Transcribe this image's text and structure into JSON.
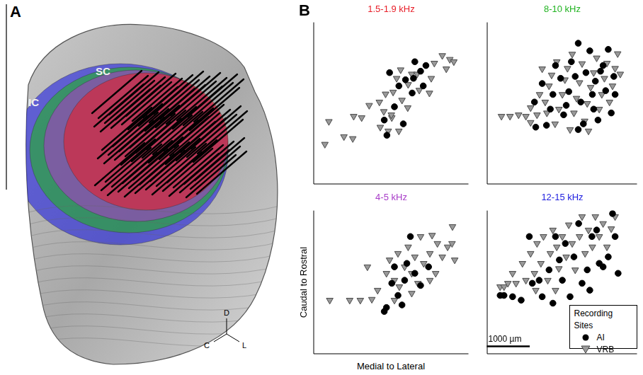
{
  "panel_a": {
    "letter": "A",
    "labels": [
      "SC",
      "IC"
    ],
    "orientation": {
      "up": "D",
      "left": "C",
      "right": "L"
    }
  },
  "panel_b": {
    "letter": "B",
    "xlabel": "Medial to Lateral",
    "ylabel": "Caudal to Rostral",
    "legend": "bottom right",
    "legend_title": "Recording Sites",
    "scale_bar": {
      "label": "1000 µm",
      "length": 1000
    }
  },
  "chart_data": [
    {
      "type": "scatter",
      "title": "1.5-1.9 kHz",
      "color": "#e8202a",
      "xlim": [
        0,
        3500
      ],
      "ylim": [
        0,
        3400
      ],
      "tick_labels": false,
      "grid": false,
      "series": [
        {
          "name": "AI",
          "color": "#000000",
          "marker": "circle",
          "x": [
            1720,
            1830,
            2030,
            2080,
            2230,
            2290,
            2420,
            2480,
            1660,
            1600,
            2540,
            2260,
            1930
          ],
          "values": [
            2340,
            1620,
            1260,
            2190,
            1910,
            2570,
            2370,
            2060,
            1020,
            1340,
            2490,
            2220,
            2060
          ]
        },
        {
          "name": "VRB",
          "color": "#999999",
          "marker": "triangle_down",
          "x": [
            260,
            350,
            690,
            890,
            910,
            1090,
            1260,
            1490,
            1510,
            1590,
            1630,
            1690,
            1770,
            1800,
            1880,
            1970,
            2000,
            2130,
            2140,
            2220,
            2340,
            2390,
            2620,
            2660,
            2730,
            2910,
            3000,
            3080,
            3170,
            1760,
            1930
          ],
          "values": [
            830,
            1310,
            990,
            950,
            1420,
            1390,
            1650,
            1720,
            1190,
            1520,
            1890,
            1110,
            1390,
            1930,
            2220,
            2400,
            1760,
            1600,
            2090,
            2310,
            2310,
            1970,
            1910,
            2220,
            2540,
            2700,
            2420,
            2620,
            2570,
            1450,
            1110
          ]
        }
      ]
    },
    {
      "type": "scatter",
      "title": "8-10 kHz",
      "color": "#22b422",
      "xlim": [
        0,
        3500
      ],
      "ylim": [
        0,
        3400
      ],
      "tick_labels": false,
      "grid": false,
      "series": [
        {
          "name": "AI",
          "color": "#000000",
          "marker": "circle",
          "x": [
            1110,
            1290,
            1390,
            1540,
            1600,
            1720,
            1790,
            1910,
            1970,
            2060,
            2190,
            2250,
            2310,
            2400,
            2460,
            2530,
            2590,
            2710,
            2770,
            2830,
            2960,
            2900,
            1140,
            1480,
            1850,
            2130,
            2490,
            2650,
            2990,
            2130
          ],
          "values": [
            1720,
            2110,
            1230,
            1880,
            2490,
            2220,
            1450,
            1940,
            2570,
            2260,
            1720,
            1260,
            2340,
            2800,
            1880,
            2160,
            1340,
            2490,
            1960,
            2830,
            2260,
            1490,
            1190,
            1570,
            1650,
            1140,
            1570,
            2370,
            1880,
            2960
          ]
        },
        {
          "name": "VRB",
          "color": "#999999",
          "marker": "triangle_down",
          "x": [
            340,
            540,
            740,
            910,
            1020,
            1020,
            1170,
            1230,
            1360,
            1400,
            1450,
            1510,
            1590,
            1680,
            1760,
            1820,
            1880,
            1940,
            2030,
            2090,
            2160,
            2220,
            2280,
            2340,
            2420,
            2490,
            2560,
            2620,
            2680,
            2740,
            2800,
            2860,
            2930,
            2990,
            3050,
            3110,
            1290,
            1630,
            1990,
            2370
          ],
          "values": [
            1420,
            1420,
            1450,
            1420,
            1600,
            1290,
            1450,
            1880,
            1720,
            1490,
            2060,
            2290,
            1260,
            1570,
            1880,
            2190,
            2430,
            1140,
            1490,
            1800,
            2130,
            2530,
            1320,
            1690,
            2030,
            2340,
            2650,
            1570,
            1880,
            2220,
            2540,
            1720,
            2060,
            2430,
            2740,
            2310,
            2420,
            2570,
            2730,
            1110
          ]
        }
      ]
    },
    {
      "type": "scatter",
      "title": "4-5 kHz",
      "color": "#a83cc8",
      "xlim": [
        0,
        3500
      ],
      "ylim": [
        0,
        3300
      ],
      "tick_labels": false,
      "grid": false,
      "series": [
        {
          "name": "AI",
          "color": "#000000",
          "marker": "circle",
          "x": [
            1600,
            1650,
            1770,
            1910,
            2000,
            2060,
            2110,
            2290,
            2420,
            1830,
            2600,
            2190
          ],
          "values": [
            970,
            1060,
            1620,
            1340,
            1120,
            1690,
            2080,
            1850,
            1570,
            2000,
            2000,
            2700
          ]
        },
        {
          "name": "VRB",
          "color": "#999999",
          "marker": "triangle_down",
          "x": [
            370,
            820,
            1060,
            1320,
            1450,
            1650,
            1720,
            1830,
            1910,
            1940,
            2060,
            2140,
            2220,
            2290,
            2360,
            2420,
            2490,
            2630,
            2680,
            2760,
            2800,
            2910,
            3030,
            3140,
            3190,
            3130,
            2630,
            2220,
            1220,
            1830
          ],
          "values": [
            1230,
            1230,
            1230,
            1250,
            1460,
            1850,
            2160,
            1690,
            2310,
            1540,
            2000,
            2460,
            1850,
            2230,
            1620,
            2700,
            2080,
            2310,
            2730,
            1850,
            2540,
            2230,
            2460,
            2930,
            2160,
            2540,
            1690,
            1390,
            2000,
            1230
          ]
        }
      ]
    },
    {
      "type": "scatter",
      "title": "12-15 kHz",
      "color": "#2020e0",
      "xlim": [
        0,
        3500
      ],
      "ylim": [
        0,
        3300
      ],
      "tick_labels": false,
      "grid": false,
      "series": [
        {
          "name": "AI",
          "color": "#000000",
          "marker": "circle",
          "x": [
            310,
            400,
            600,
            800,
            1060,
            1220,
            1290,
            1450,
            1540,
            1690,
            1760,
            1830,
            1940,
            2030,
            2140,
            2220,
            2340,
            2450,
            2560,
            2620,
            2710,
            2830,
            2930,
            3060,
            2990,
            2400,
            1600,
            990
          ],
          "values": [
            1340,
            1340,
            1310,
            1230,
            1620,
            1690,
            1310,
            1930,
            1160,
            2160,
            1690,
            2540,
            1310,
            2230,
            3000,
            1620,
            1930,
            2700,
            2850,
            2080,
            2000,
            2230,
            3230,
            1850,
            2700,
            1460,
            2700,
            2700
          ]
        },
        {
          "name": "VRB",
          "color": "#999999",
          "marker": "triangle_down",
          "x": [
            310,
            400,
            490,
            600,
            680,
            830,
            910,
            1020,
            1110,
            1170,
            1260,
            1320,
            1420,
            1480,
            1540,
            1630,
            1680,
            1760,
            1850,
            1910,
            1990,
            2060,
            2160,
            2220,
            2290,
            2370,
            2460,
            2530,
            2620,
            2710,
            2800,
            2900,
            2990,
            1140,
            1600
          ],
          "values": [
            1540,
            1540,
            1620,
            1850,
            1620,
            2080,
            1690,
            2310,
            1850,
            2540,
            2080,
            2700,
            1690,
            2310,
            2850,
            2460,
            1960,
            2700,
            2230,
            2970,
            2540,
            1930,
            2700,
            3160,
            2310,
            2850,
            2460,
            3160,
            2700,
            3000,
            2460,
            2880,
            3160,
            1460,
            1460
          ]
        }
      ]
    }
  ]
}
